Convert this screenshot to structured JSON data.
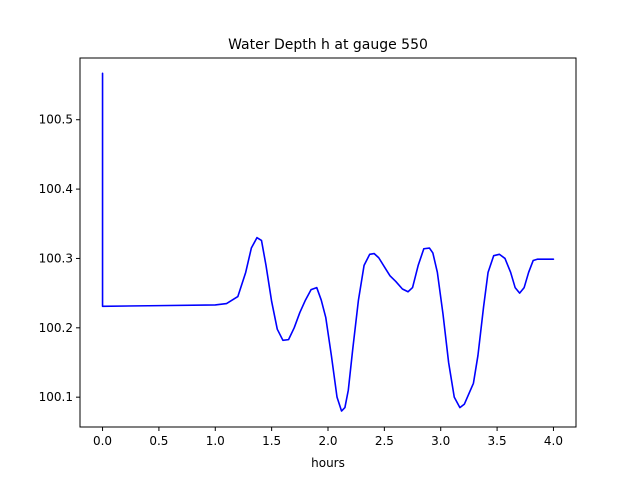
{
  "chart_data": {
    "type": "line",
    "title": "Water Depth h at gauge 550",
    "xlabel": "hours",
    "ylabel": "",
    "xlim": [
      -0.2,
      4.2
    ],
    "ylim": [
      100.057,
      100.589
    ],
    "grid": false,
    "x_ticks": [
      0.0,
      0.5,
      1.0,
      1.5,
      2.0,
      2.5,
      3.0,
      3.5,
      4.0
    ],
    "x_tick_labels": [
      "0.0",
      "0.5",
      "1.0",
      "1.5",
      "2.0",
      "2.5",
      "3.0",
      "3.5",
      "4.0"
    ],
    "y_ticks": [
      100.1,
      100.2,
      100.3,
      100.4,
      100.5
    ],
    "y_tick_labels": [
      "100.1",
      "100.2",
      "100.3",
      "100.4",
      "100.5"
    ],
    "series": [
      {
        "color": "#0000ff",
        "x": [
          0.0,
          0.0,
          0.0,
          0.5,
          1.0,
          1.1,
          1.2,
          1.27,
          1.32,
          1.37,
          1.41,
          1.45,
          1.5,
          1.55,
          1.6,
          1.65,
          1.7,
          1.75,
          1.8,
          1.85,
          1.9,
          1.94,
          1.98,
          2.03,
          2.08,
          2.12,
          2.15,
          2.18,
          2.22,
          2.27,
          2.32,
          2.37,
          2.41,
          2.45,
          2.5,
          2.55,
          2.6,
          2.66,
          2.71,
          2.75,
          2.8,
          2.85,
          2.9,
          2.93,
          2.97,
          3.02,
          3.07,
          3.12,
          3.17,
          3.21,
          3.25,
          3.29,
          3.33,
          3.38,
          3.42,
          3.47,
          3.52,
          3.57,
          3.62,
          3.66,
          3.7,
          3.74,
          3.78,
          3.82,
          3.86,
          3.9,
          3.95,
          4.0
        ],
        "y": [
          100.567,
          100.567,
          100.231,
          100.232,
          100.233,
          100.235,
          100.245,
          100.28,
          100.315,
          100.33,
          100.326,
          100.29,
          100.238,
          100.198,
          100.182,
          100.183,
          100.2,
          100.222,
          100.24,
          100.255,
          100.258,
          100.24,
          100.215,
          100.16,
          100.1,
          100.08,
          100.085,
          100.11,
          100.17,
          100.24,
          100.29,
          100.306,
          100.307,
          100.301,
          100.288,
          100.275,
          100.267,
          100.256,
          100.252,
          100.258,
          100.29,
          100.314,
          100.315,
          100.308,
          100.28,
          100.22,
          100.15,
          100.1,
          100.085,
          100.09,
          100.105,
          100.12,
          100.16,
          100.23,
          100.28,
          100.304,
          100.306,
          100.3,
          100.28,
          100.258,
          100.25,
          100.258,
          100.28,
          100.297,
          100.299,
          100.299,
          100.299,
          100.299
        ]
      }
    ]
  }
}
